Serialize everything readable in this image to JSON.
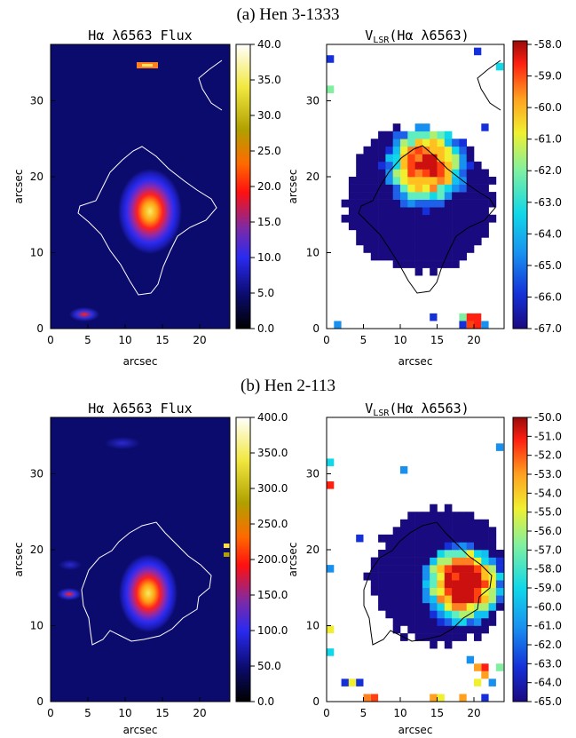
{
  "figure": {
    "panels": [
      {
        "caption": "(a) Hen 3-1333",
        "flux": {
          "title": "Hα λ6563 Flux",
          "xlabel": "arcsec",
          "ylabel": "arcsec",
          "xticks": [
            "0",
            "5",
            "10",
            "15",
            "20"
          ],
          "yticks": [
            "0",
            "10",
            "20",
            "30"
          ],
          "colorbar_ticks": [
            "0.0",
            "5.0",
            "10.0",
            "15.0",
            "20.0",
            "25.0",
            "30.0",
            "35.0",
            "40.0"
          ]
        },
        "velocity": {
          "title_main": "V",
          "title_sub": "LSR",
          "title_rest": "(Hα λ6563)",
          "xlabel": "arcsec",
          "ylabel": "arcsec",
          "xticks": [
            "0",
            "5",
            "10",
            "15",
            "20"
          ],
          "yticks": [
            "0",
            "10",
            "20",
            "30"
          ],
          "colorbar_ticks": [
            "-58.0",
            "-59.0",
            "-60.0",
            "-61.0",
            "-62.0",
            "-63.0",
            "-64.0",
            "-65.0",
            "-66.0",
            "-67.0"
          ]
        }
      },
      {
        "caption": "(b) Hen 2-113",
        "flux": {
          "title": "Hα λ6563 Flux",
          "xlabel": "arcsec",
          "ylabel": "arcsec",
          "xticks": [
            "0",
            "5",
            "10",
            "15",
            "20"
          ],
          "yticks": [
            "0",
            "10",
            "20",
            "30"
          ],
          "colorbar_ticks": [
            "0.0",
            "50.0",
            "100.0",
            "150.0",
            "200.0",
            "250.0",
            "300.0",
            "350.0",
            "400.0"
          ]
        },
        "velocity": {
          "title_main": "V",
          "title_sub": "LSR",
          "title_rest": "(Hα λ6563)",
          "xlabel": "arcsec",
          "ylabel": "arcsec",
          "xticks": [
            "0",
            "5",
            "10",
            "15",
            "20"
          ],
          "yticks": [
            "0",
            "10",
            "20",
            "30"
          ],
          "colorbar_ticks": [
            "-50.0",
            "-51.0",
            "-52.0",
            "-53.0",
            "-54.0",
            "-55.0",
            "-56.0",
            "-57.0",
            "-58.0",
            "-59.0",
            "-60.0",
            "-61.0",
            "-62.0",
            "-63.0",
            "-64.0",
            "-65.0"
          ]
        }
      }
    ]
  }
}
